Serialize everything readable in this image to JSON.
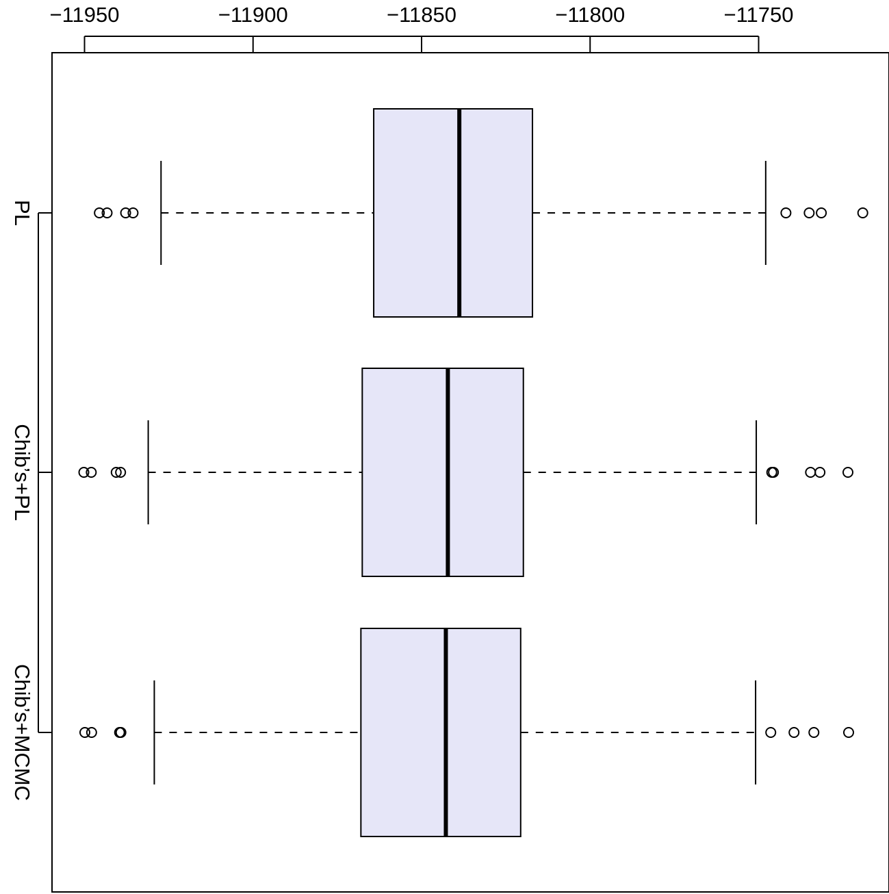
{
  "chart_data": {
    "type": "boxplot",
    "orientation": "horizontal",
    "x_axis_position": "top",
    "xlim": [
      -11962,
      -11726
    ],
    "x_ticks": [
      -11950,
      -11900,
      -11850,
      -11800,
      -11750
    ],
    "x_tick_labels": [
      "−11950",
      "−11900",
      "−11850",
      "−11800",
      "−11750"
    ],
    "categories": [
      "PL",
      "Chib’s+PL",
      "Chib’s+MCMC"
    ],
    "series": [
      {
        "name": "PL",
        "whisker_low": -11927.3,
        "q1": -11864.2,
        "median": -11838.8,
        "q3": -11817.1,
        "whisker_high": -11747.9,
        "outliers": [
          -11945.6,
          -11943.3,
          -11937.8,
          -11935.6,
          -11741.9,
          -11735.0,
          -11731.4,
          -11719.1
        ]
      },
      {
        "name": "Chib’s+PL",
        "whisker_low": -11931.1,
        "q1": -11867.6,
        "median": -11842.2,
        "q3": -11819.8,
        "whisker_high": -11750.7,
        "outliers": [
          -11950.2,
          -11948.0,
          -11940.6,
          -11939.3,
          -11746.1,
          -11745.6,
          -11734.6,
          -11731.8,
          -11723.5
        ]
      },
      {
        "name": "Chib’s+MCMC",
        "whisker_low": -11929.3,
        "q1": -11868.0,
        "median": -11842.8,
        "q3": -11820.6,
        "whisker_high": -11750.9,
        "outliers": [
          -11949.9,
          -11947.9,
          -11939.6,
          -11939.2,
          -11746.4,
          -11739.5,
          -11733.6,
          -11723.3
        ]
      }
    ],
    "box_fill": "#e6e6f8",
    "median_color": "#000000"
  }
}
